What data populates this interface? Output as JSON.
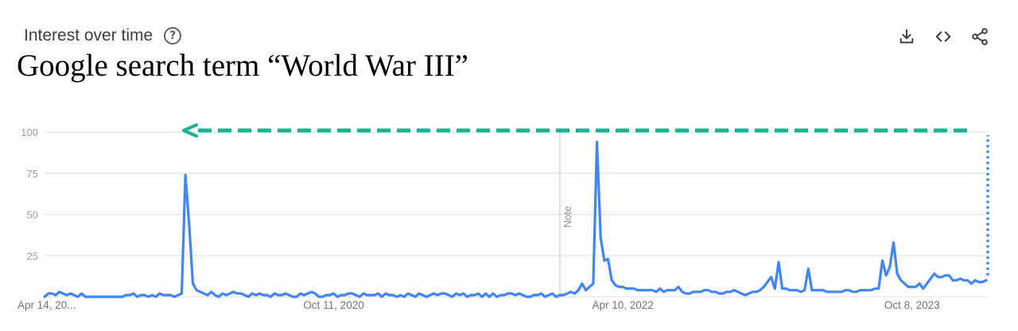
{
  "card": {
    "section_title": "Interest over time",
    "headline": "Google search term “World War III”"
  },
  "toolbar": {
    "download_icon": "download-icon",
    "embed_icon": "embed-code-icon",
    "share_icon": "share-icon"
  },
  "colors": {
    "series": "#4285f4",
    "arrow": "#15b394",
    "gridline": "#e0e0e0",
    "axis_text": "#9aa0a6"
  },
  "chart_data": {
    "type": "line",
    "title": "",
    "xlabel": "",
    "ylabel": "",
    "ylim": [
      0,
      100
    ],
    "y_ticks": [
      100,
      75,
      50,
      25
    ],
    "x_tick_labels": [
      "Apr 14, 20...",
      "Oct 11, 2020",
      "Apr 10, 2022",
      "Oct 8, 2023"
    ],
    "x_tick_index": [
      0,
      78,
      156,
      234
    ],
    "note_label": "Note",
    "note_index": 139,
    "grid": true,
    "series": [
      {
        "values": [
          0,
          2,
          2,
          1,
          3,
          2,
          1,
          2,
          1,
          0,
          2,
          0,
          0,
          0,
          0,
          0,
          0,
          0,
          0,
          0,
          0,
          0,
          1,
          1,
          2,
          0,
          1,
          1,
          0,
          1,
          0,
          2,
          1,
          1,
          1,
          0,
          1,
          2,
          74,
          44,
          8,
          4,
          3,
          2,
          1,
          3,
          1,
          0,
          2,
          1,
          2,
          3,
          2,
          2,
          1,
          0,
          2,
          1,
          2,
          1,
          1,
          0,
          2,
          1,
          1,
          2,
          1,
          0,
          0,
          2,
          1,
          2,
          3,
          2,
          0,
          0,
          1,
          1,
          2,
          0,
          1,
          1,
          2,
          2,
          1,
          0,
          2,
          1,
          1,
          1,
          2,
          0,
          2,
          1,
          1,
          0,
          1,
          0,
          2,
          1,
          0,
          2,
          1,
          0,
          1,
          2,
          1,
          2,
          2,
          1,
          0,
          2,
          1,
          2,
          0,
          1,
          1,
          2,
          0,
          2,
          0,
          2,
          0,
          1,
          1,
          2,
          2,
          1,
          2,
          1,
          0,
          0,
          1,
          1,
          2,
          0,
          1,
          2,
          0,
          1,
          1,
          2,
          3,
          2,
          4,
          8,
          4,
          6,
          8,
          94,
          36,
          22,
          23,
          10,
          7,
          6,
          6,
          5,
          5,
          5,
          4,
          4,
          4,
          4,
          4,
          3,
          5,
          3,
          4,
          4,
          4,
          6,
          3,
          2,
          2,
          3,
          3,
          3,
          4,
          4,
          3,
          3,
          2,
          2,
          3,
          3,
          4,
          3,
          2,
          1,
          2,
          3,
          3,
          4,
          6,
          9,
          12,
          5,
          21,
          5,
          5,
          4,
          4,
          4,
          3,
          4,
          17,
          4,
          4,
          4,
          4,
          3,
          3,
          3,
          3,
          3,
          4,
          4,
          3,
          3,
          4,
          4,
          4,
          4,
          5,
          5,
          22,
          13,
          18,
          33,
          14,
          10,
          8,
          6,
          6,
          6,
          8,
          5,
          8,
          11,
          14,
          12,
          12,
          13,
          13,
          10,
          10,
          11,
          10,
          10,
          8,
          10,
          9,
          9,
          10
        ]
      }
    ],
    "annotations": [
      {
        "kind": "dashed-arrow",
        "value": 100,
        "direction": "left"
      },
      {
        "kind": "dotted-line",
        "at": "last-point"
      }
    ]
  }
}
